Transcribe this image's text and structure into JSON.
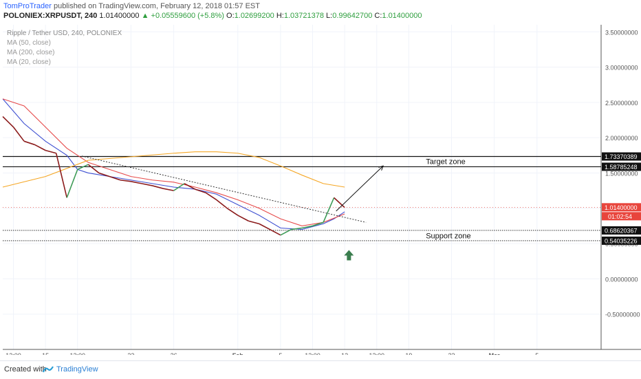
{
  "header": {
    "author": "TomProTrader",
    "published_text": "published on TradingView.com, February 12, 2018 01:57 EST",
    "symbol": "POLONIEX:XRPUSDT, 240",
    "last": "1.01400000",
    "change": "+0.05559600 (+5.8%)",
    "o_label": "O:",
    "o_val": "1.02699200",
    "h_label": "H:",
    "h_val": "1.03721378",
    "l_label": "L:",
    "l_val": "0.99642700",
    "c_label": "C:",
    "c_val": "1.01400000"
  },
  "legend": {
    "title": "Ripple / Tether USD, 240, POLONIEX",
    "ma1": "MA (50, close)",
    "ma2": "MA (200, close)",
    "ma3": "MA (20, close)"
  },
  "annotations": {
    "target_zone": "Target zone",
    "support_zone": "Support zone",
    "countdown": "01:02:54"
  },
  "colors": {
    "up": "#3d9b57",
    "down": "#8b1a1a",
    "ma50": "#e64a4a",
    "ma200": "#f5a623",
    "ma20": "#3d4fd1",
    "price_tag": "#e8453c",
    "arrow": "#3a7d4e"
  },
  "footer": {
    "created_with": "Created with",
    "brand": "TradingView"
  },
  "chart_data": {
    "type": "line",
    "title": "Ripple / Tether USD, 240, POLONIEX",
    "y_range": [
      -1.0,
      3.6
    ],
    "y_ticks": [
      "3.50000000",
      "3.00000000",
      "2.50000000",
      "2.00000000",
      "1.50000000",
      "1.00000000",
      "0.50000000",
      "0.00000000",
      "-0.50000000"
    ],
    "y_tick_values": [
      3.5,
      3.0,
      2.5,
      2.0,
      1.5,
      1.0,
      0.5,
      0.0,
      -0.5
    ],
    "x_ticks": [
      "12:00",
      "15",
      "12:00",
      "22",
      "26",
      "Feb",
      "5",
      "12:00",
      "12",
      "12:00",
      "19",
      "23",
      "Mar",
      "5"
    ],
    "x_tick_values": [
      0.5,
      2.0,
      3.5,
      6.0,
      8.0,
      11.0,
      13.0,
      14.5,
      16.0,
      17.5,
      19.0,
      21.0,
      23.0,
      25.0
    ],
    "x_tick_bold": [
      false,
      false,
      false,
      false,
      false,
      true,
      false,
      false,
      false,
      false,
      false,
      false,
      true,
      false
    ],
    "x_range": [
      0,
      28
    ],
    "price_levels": [
      {
        "label": "1.73370389",
        "value": 1.7337
      },
      {
        "label": "1.58785248",
        "value": 1.5879
      },
      {
        "label": "0.68620367",
        "value": 0.6862
      },
      {
        "label": "0.54035226",
        "value": 0.5404
      }
    ],
    "last_price": {
      "label": "1.01400000",
      "value": 1.014
    },
    "series": [
      {
        "name": "XRPUSDT",
        "x": [
          0.0,
          0.5,
          1.0,
          1.5,
          2.0,
          2.5,
          3.0,
          3.5,
          4.0,
          4.5,
          5.0,
          5.5,
          6.0,
          6.5,
          7.0,
          7.5,
          8.0,
          8.5,
          9.0,
          9.5,
          10.0,
          10.5,
          11.0,
          11.5,
          12.0,
          12.5,
          13.0,
          13.5,
          14.0,
          14.5,
          15.0,
          15.5,
          16.0
        ],
        "y": [
          2.3,
          2.15,
          1.95,
          1.9,
          1.82,
          1.78,
          1.15,
          1.55,
          1.62,
          1.5,
          1.45,
          1.4,
          1.38,
          1.35,
          1.32,
          1.28,
          1.25,
          1.35,
          1.27,
          1.22,
          1.12,
          1.0,
          0.9,
          0.82,
          0.78,
          0.7,
          0.62,
          0.7,
          0.72,
          0.75,
          0.8,
          1.15,
          1.01
        ]
      },
      {
        "name": "MA (20, close)",
        "x": [
          0.0,
          1.0,
          2.0,
          3.0,
          3.5,
          4.0,
          5.0,
          6.0,
          7.0,
          8.0,
          9.0,
          10.0,
          11.0,
          12.0,
          13.0,
          14.0,
          15.0,
          15.5,
          16.0
        ],
        "y": [
          2.55,
          2.2,
          1.95,
          1.75,
          1.55,
          1.5,
          1.45,
          1.4,
          1.35,
          1.3,
          1.27,
          1.2,
          1.05,
          0.9,
          0.72,
          0.7,
          0.78,
          0.85,
          0.95
        ]
      },
      {
        "name": "MA (50, close)",
        "x": [
          0.0,
          1.0,
          2.0,
          3.0,
          4.0,
          5.0,
          6.0,
          7.0,
          8.0,
          9.0,
          10.0,
          11.0,
          12.0,
          13.0,
          14.0,
          15.0,
          16.0
        ],
        "y": [
          2.55,
          2.45,
          2.15,
          1.85,
          1.65,
          1.55,
          1.45,
          1.4,
          1.37,
          1.3,
          1.22,
          1.12,
          1.0,
          0.85,
          0.75,
          0.8,
          0.92
        ]
      },
      {
        "name": "MA (200, close)",
        "x": [
          0.0,
          2.0,
          4.0,
          6.0,
          8.0,
          9.0,
          10.0,
          11.0,
          12.0,
          13.0,
          14.0,
          15.0,
          16.0
        ],
        "y": [
          1.3,
          1.45,
          1.68,
          1.73,
          1.78,
          1.8,
          1.8,
          1.78,
          1.72,
          1.6,
          1.47,
          1.35,
          1.3
        ]
      }
    ],
    "trendline": {
      "x": [
        3.7,
        17.0
      ],
      "y": [
        1.74,
        0.8
      ]
    },
    "projection": {
      "x": [
        15.6,
        17.8
      ],
      "y": [
        0.96,
        1.6
      ]
    },
    "legend_position": "top-left",
    "grid": true
  }
}
